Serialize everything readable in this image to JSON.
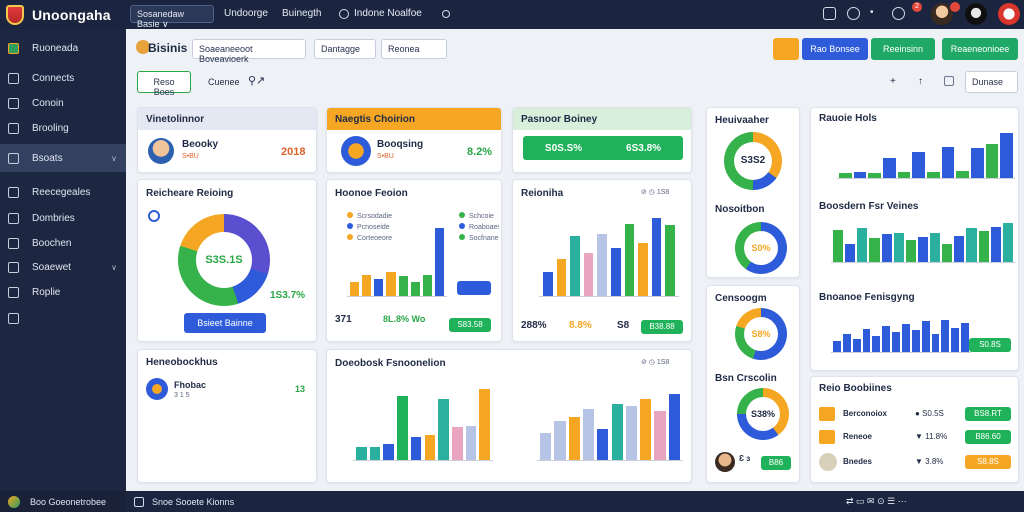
{
  "app": {
    "title": "Unoongaha"
  },
  "topbar": {
    "selector": "Sosanedaw Basie ∨",
    "links": [
      "Undoorge",
      "Buinegth",
      "Indone Noalfoe"
    ],
    "badge_count": "2"
  },
  "sidebar": {
    "items": [
      {
        "label": "Ruoneada",
        "icon": "cube-icon"
      },
      {
        "label": "Connects",
        "icon": "user-icon"
      },
      {
        "label": "Conoin",
        "icon": "folder-icon"
      },
      {
        "label": "Brooling",
        "icon": "calendar-icon"
      },
      {
        "label": "Bsoats",
        "icon": "pen-icon"
      },
      {
        "label": "Reecegeales",
        "icon": "chart-icon"
      },
      {
        "label": "Dombries",
        "icon": "home-icon"
      },
      {
        "label": "Boochen",
        "icon": "list-icon"
      },
      {
        "label": "Soaewet",
        "icon": "gear-icon"
      },
      {
        "label": "Roplie",
        "icon": "settings-icon"
      }
    ],
    "footer": "Boo Goeonetrobee"
  },
  "toolbar": {
    "page_title": "Bisinis",
    "select1": "Soaeaneeoot Boveavioerk",
    "select2": "Dantagge",
    "select3": "Reonea",
    "btn_primary": "Rao Bonsee",
    "btn_green": "Reeinsinn",
    "btn_green2": "Reaeneonioee",
    "tab_active": "Reso Boes",
    "tab_other": "Cuenee",
    "view_select": "Dunase"
  },
  "cards": {
    "profile": {
      "header": "Vinetolinnor",
      "name": "Beooky",
      "sub": "S•BU",
      "value": "2018"
    },
    "orange": {
      "header": "Naegtis Choirion",
      "name": "Booqsing",
      "sub": "S•BU",
      "value": "8.2%"
    },
    "green": {
      "header": "Pasnoor Boiney",
      "left": "S0S.S%",
      "right": "6S3.8%"
    },
    "donut_main": {
      "title": "Reicheare Reioing",
      "center": "S3S.1S",
      "side": "1S3.7%",
      "button": "Bsieet Bainne"
    },
    "bars1": {
      "title": "Hoonoe Feoion",
      "legend": [
        "Scrsodadie",
        "Pcnoseide",
        "Corteoeore",
        "Schcoie",
        "Roaboaese",
        "Socfnane"
      ],
      "stat1": "371",
      "stat2": "8L.8% Wo",
      "pill": "S83.58"
    },
    "bars2": {
      "title": "Reioniha",
      "date": "1S8",
      "stat1": "288%",
      "stat2": "8.8%",
      "stat3": "S8",
      "pill": "B38.88"
    },
    "notes": {
      "title": "Heneobockhus",
      "name": "Fhobac",
      "sub": "3 1 5",
      "value": "13"
    },
    "bottom_chart": {
      "title": "Doeobosk Fsnoonelion",
      "date": "1S8"
    },
    "ring1": {
      "title": "Heuivaaher",
      "center": "S3S2"
    },
    "ring2": {
      "title": "Nosoitbon",
      "center": "S0%"
    },
    "ring3": {
      "title": "Censoogm",
      "center": "S8%"
    },
    "ring4": {
      "title": "Bsn Crscolin",
      "center": "S38%",
      "pill": "B86"
    },
    "right1": {
      "title": "Rauoie Hols"
    },
    "right2": {
      "title": "Boosdern Fsr Veines"
    },
    "right3": {
      "title": "Bnoanoe Fenisgyng",
      "pill": "S0.8S"
    },
    "rows": {
      "title": "Reio Boobiines",
      "items": [
        {
          "name": "Berconoiox",
          "stat": "S0.5S",
          "pill": "BS8.RT"
        },
        {
          "name": "Reneoe",
          "stat": "11.8%",
          "pill": "B86.60"
        },
        {
          "name": "Bnedes",
          "stat": "3.8%",
          "pill": "S8.8S"
        }
      ]
    }
  },
  "status": {
    "left": "Snoe Sooete Kionns"
  },
  "colors": {
    "green": "#28a745",
    "blue": "#2e5bd9",
    "orange": "#f5a623",
    "navy": "#1b2540"
  },
  "chart_data": [
    {
      "type": "bar",
      "categories": [
        "a",
        "b",
        "c",
        "d",
        "e",
        "f",
        "g",
        "h"
      ],
      "series": [
        {
          "values": [
            1.2,
            1.9,
            1.5,
            2.1,
            1.8,
            1.2,
            1.9,
            6.0
          ]
        }
      ]
    },
    {
      "type": "bar",
      "categories": [
        "a",
        "b",
        "c",
        "d",
        "e",
        "f",
        "g",
        "h",
        "i",
        "j"
      ],
      "series": [
        {
          "values": [
            2.0,
            3.1,
            5.0,
            3.6,
            5.2,
            4.0,
            6.0,
            4.4,
            6.5,
            5.9
          ]
        }
      ]
    },
    {
      "type": "bar",
      "categories": [
        "a",
        "b",
        "c",
        "d",
        "e",
        "f",
        "g",
        "h",
        "i",
        "j",
        "k",
        "l"
      ],
      "series": [
        {
          "values": [
            0.6,
            0.7,
            0.6,
            2.5,
            0.7,
            3.3,
            0.7,
            3.9,
            0.9,
            3.8,
            4.3,
            5.6
          ]
        }
      ]
    },
    {
      "type": "bar",
      "categories": [
        "a",
        "b",
        "c",
        "d",
        "e",
        "f",
        "g",
        "h",
        "i",
        "j",
        "k",
        "l",
        "m",
        "n",
        "o"
      ],
      "series": [
        {
          "values": [
            4.3,
            2.5,
            4.6,
            3.3,
            3.8,
            4.0,
            3.0,
            3.4,
            3.9,
            2.5,
            3.5,
            4.7,
            4.2,
            4.8,
            5.3
          ]
        }
      ]
    }
  ]
}
